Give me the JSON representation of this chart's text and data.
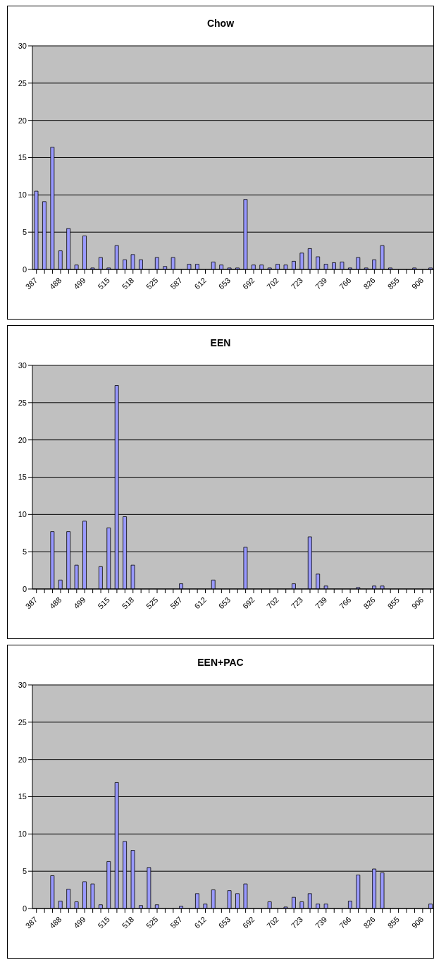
{
  "chart_data": [
    {
      "type": "bar",
      "title": "Chow",
      "categories": [
        "387",
        null,
        null,
        "488",
        null,
        null,
        "499",
        null,
        null,
        "515",
        null,
        null,
        "518",
        null,
        null,
        "525",
        null,
        null,
        "587",
        null,
        null,
        "612",
        null,
        null,
        "653",
        null,
        null,
        "692",
        null,
        null,
        "702",
        null,
        null,
        "723",
        null,
        null,
        "739",
        null,
        null,
        "766",
        null,
        null,
        "826",
        null,
        null,
        "855",
        null,
        null,
        "906",
        null
      ],
      "values": [
        10.5,
        9.1,
        16.4,
        2.5,
        5.5,
        0.6,
        4.5,
        0.2,
        1.6,
        0.2,
        3.2,
        1.3,
        2.0,
        1.3,
        0,
        1.6,
        0.4,
        1.6,
        0,
        0.7,
        0.7,
        0,
        1.0,
        0.6,
        0.2,
        0.2,
        9.4,
        0.6,
        0.6,
        0.2,
        0.7,
        0.6,
        1.1,
        2.2,
        2.8,
        1.7,
        0.7,
        0.9,
        1.0,
        0.2,
        1.6,
        0.2,
        1.3,
        3.2,
        0.2,
        0,
        0,
        0.2,
        0,
        0.2
      ],
      "color": "#9999ff",
      "ylim": [
        0,
        30
      ],
      "yticks": [
        0,
        5,
        10,
        15,
        20,
        25,
        30
      ],
      "grid": "y"
    },
    {
      "type": "bar",
      "title": "EEN",
      "categories": [
        "387",
        null,
        null,
        "488",
        null,
        null,
        "499",
        null,
        null,
        "515",
        null,
        null,
        "518",
        null,
        null,
        "525",
        null,
        null,
        "587",
        null,
        null,
        "612",
        null,
        null,
        "653",
        null,
        null,
        "692",
        null,
        null,
        "702",
        null,
        null,
        "723",
        null,
        null,
        "739",
        null,
        null,
        "766",
        null,
        null,
        "826",
        null,
        null,
        "855",
        null,
        null,
        "906",
        null
      ],
      "values": [
        0,
        0,
        7.7,
        1.2,
        7.7,
        3.2,
        9.1,
        0,
        3.0,
        8.2,
        27.3,
        9.7,
        3.2,
        0,
        0,
        0,
        0,
        0,
        0.7,
        0,
        0,
        0,
        1.2,
        0,
        0,
        0,
        5.6,
        0,
        0,
        0,
        0,
        0,
        0.7,
        0,
        7.0,
        2.0,
        0.4,
        0,
        0,
        0,
        0.2,
        0,
        0.4,
        0.4,
        0,
        0,
        0,
        0,
        0,
        0
      ],
      "color": "#9999ff",
      "ylim": [
        0,
        30
      ],
      "yticks": [
        0,
        5,
        10,
        15,
        20,
        25,
        30
      ],
      "grid": "y"
    },
    {
      "type": "bar",
      "title": "EEN+PAC",
      "categories": [
        "387",
        null,
        null,
        "488",
        null,
        null,
        "499",
        null,
        null,
        "515",
        null,
        null,
        "518",
        null,
        null,
        "525",
        null,
        null,
        "587",
        null,
        null,
        "612",
        null,
        null,
        "653",
        null,
        null,
        "692",
        null,
        null,
        "702",
        null,
        null,
        "723",
        null,
        null,
        "739",
        null,
        null,
        "766",
        null,
        null,
        "826",
        null,
        null,
        "855",
        null,
        null,
        "906",
        null
      ],
      "values": [
        0,
        0,
        4.4,
        1.0,
        2.6,
        0.9,
        3.6,
        3.3,
        0.5,
        6.3,
        16.9,
        9.0,
        7.8,
        0.4,
        5.5,
        0.5,
        0,
        0,
        0.3,
        0,
        2.0,
        0.6,
        2.5,
        0,
        2.4,
        2.0,
        3.3,
        0,
        0,
        0.9,
        0,
        0.2,
        1.5,
        0.9,
        2.0,
        0.6,
        0.6,
        0,
        0,
        1.0,
        4.5,
        0,
        5.3,
        4.8,
        0,
        0,
        0,
        0,
        0,
        0.6
      ],
      "color": "#9999ff",
      "ylim": [
        0,
        30
      ],
      "yticks": [
        0,
        5,
        10,
        15,
        20,
        25,
        30
      ],
      "grid": "y"
    }
  ]
}
